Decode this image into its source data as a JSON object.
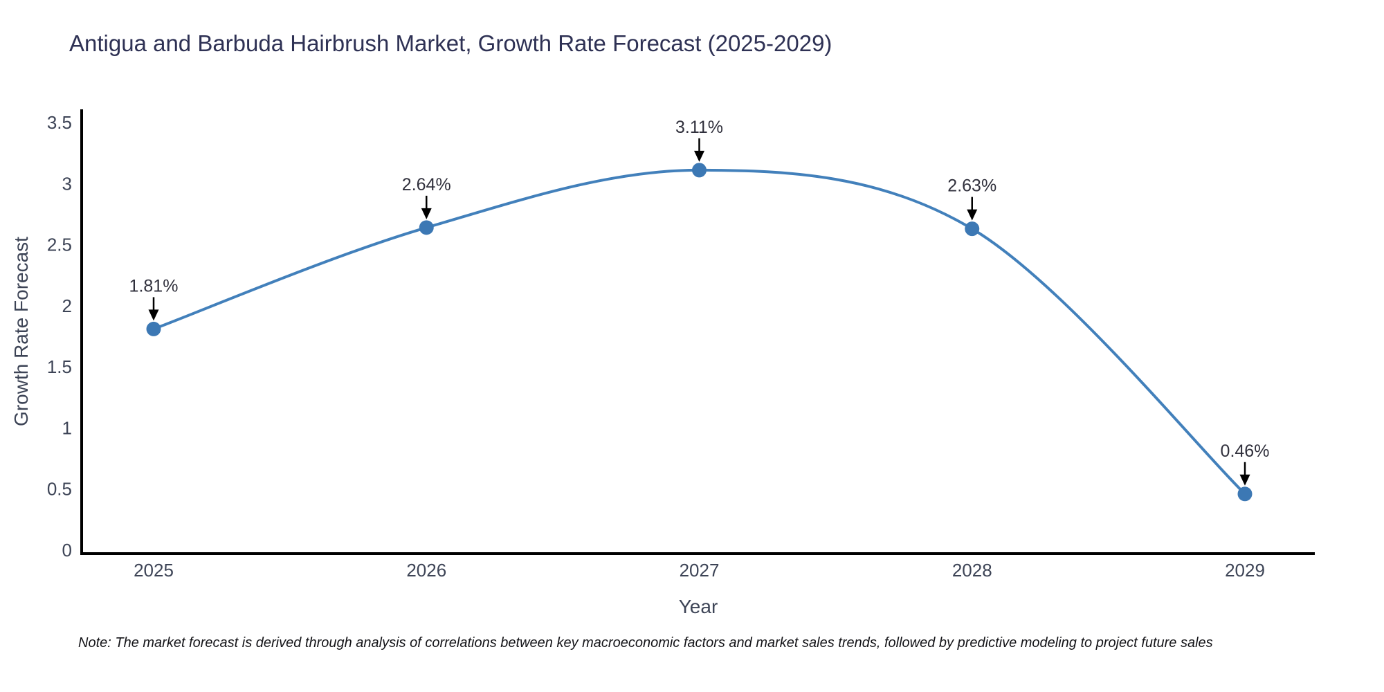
{
  "chart_data": {
    "type": "line",
    "line_shape": "spline",
    "x": [
      2025,
      2026,
      2027,
      2028,
      2029
    ],
    "values": [
      1.81,
      2.64,
      3.11,
      2.63,
      0.46
    ],
    "point_labels": [
      "1.81%",
      "2.64%",
      "3.11%",
      "2.63%",
      "0.46%"
    ],
    "title": "Antigua and Barbuda Hairbrush Market, Growth Rate Forecast (2025-2029)",
    "xlabel": "Year",
    "ylabel": "Growth Rate Forecast",
    "ylim": [
      0,
      3.5
    ],
    "yticks": [
      0,
      0.5,
      1,
      1.5,
      2,
      2.5,
      3,
      3.5
    ],
    "ytick_labels": [
      "0",
      "0.5",
      "1",
      "1.5",
      "2",
      "2.5",
      "3",
      "3.5"
    ],
    "xtick_labels": [
      "2025",
      "2026",
      "2027",
      "2028",
      "2029"
    ],
    "grid": false,
    "legend": "none",
    "annotation_style": "value label with downward black arrow above each marker"
  },
  "note": {
    "text": "Note: The market forecast is derived through analysis of correlations between key macroeconomic factors and market sales trends, followed by predictive modeling to project future sales"
  },
  "colors": {
    "line": "#4280bb",
    "marker": "#3c78b4",
    "axis_line": "#000000",
    "tick_text": "#3d4456",
    "title_text": "#2e3154",
    "annotation_text": "#30303c",
    "arrow": "#000000",
    "background": "#ffffff"
  }
}
